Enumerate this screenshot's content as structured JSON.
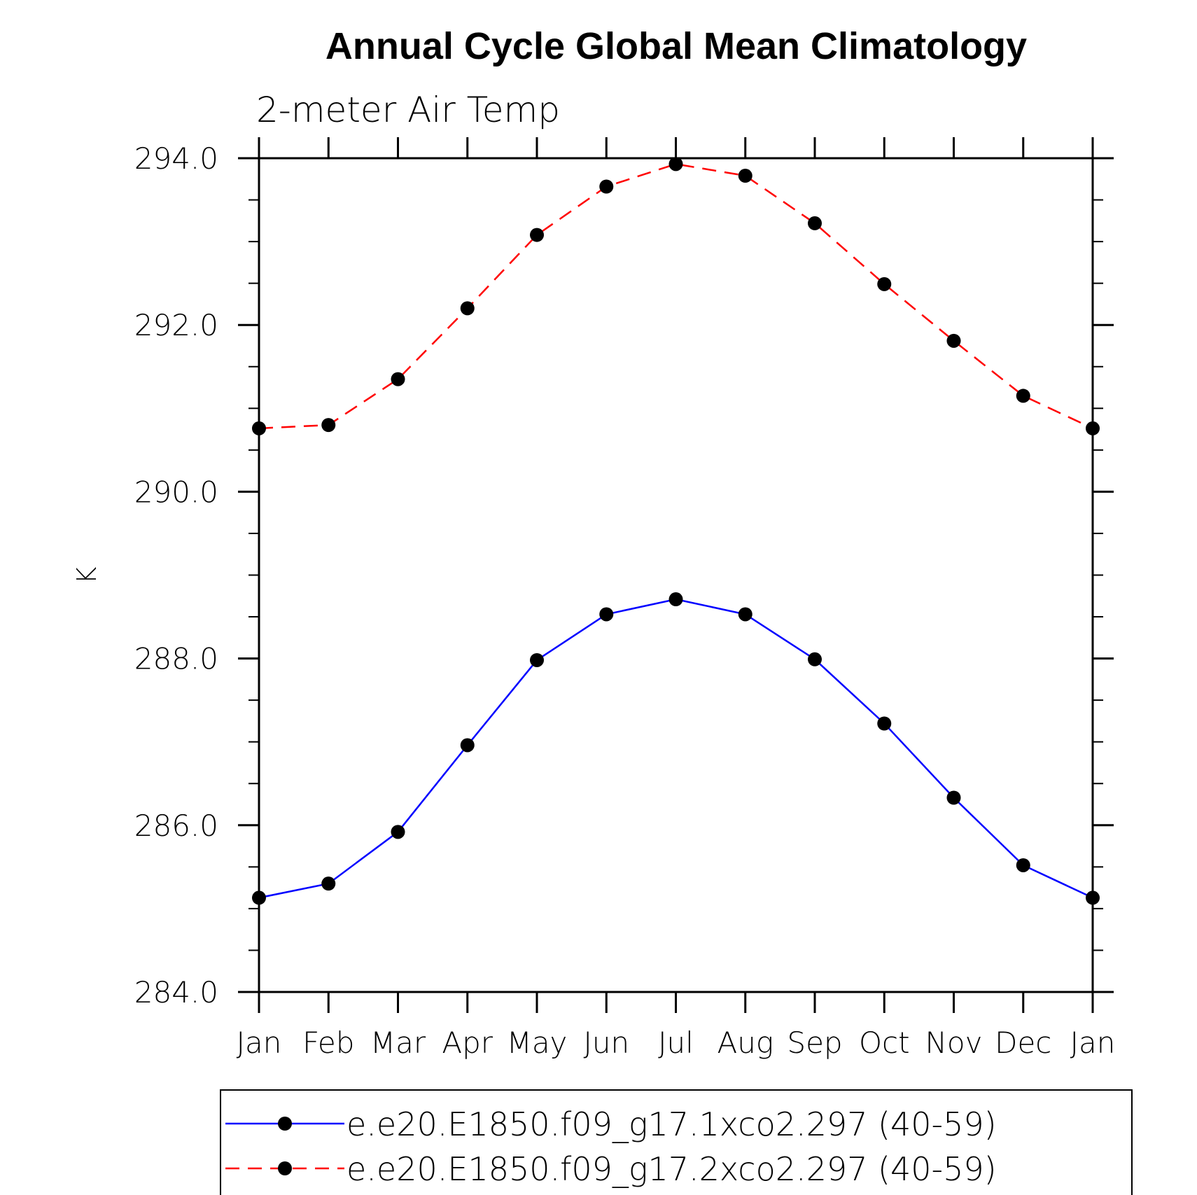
{
  "chart_data": {
    "type": "line",
    "title": "Annual Cycle Global Mean Climatology",
    "subtitle": "2-meter Air Temp",
    "xlabel": "",
    "ylabel": "K",
    "categories": [
      "Jan",
      "Feb",
      "Mar",
      "Apr",
      "May",
      "Jun",
      "Jul",
      "Aug",
      "Sep",
      "Oct",
      "Nov",
      "Dec",
      "Jan"
    ],
    "ylim": [
      284.0,
      294.0
    ],
    "yticks": [
      "284.0",
      "286.0",
      "288.0",
      "290.0",
      "292.0",
      "294.0"
    ],
    "grid": false,
    "legend_position": "bottom",
    "series": [
      {
        "name": "e.e20.E1850.f09_g17.1xco2.297 (40-59)",
        "color": "#0000ff",
        "dash": "solid",
        "marker": "filled-circle",
        "values": [
          285.13,
          285.3,
          285.92,
          286.96,
          287.98,
          288.53,
          288.71,
          288.53,
          287.99,
          287.22,
          286.33,
          285.52,
          285.13
        ]
      },
      {
        "name": "e.e20.E1850.f09_g17.2xco2.297 (40-59)",
        "color": "#ff0000",
        "dash": "dashed",
        "marker": "filled-circle",
        "values": [
          290.76,
          290.8,
          291.35,
          292.2,
          293.08,
          293.66,
          293.93,
          293.79,
          293.22,
          292.49,
          291.81,
          291.15,
          290.76
        ]
      }
    ]
  }
}
